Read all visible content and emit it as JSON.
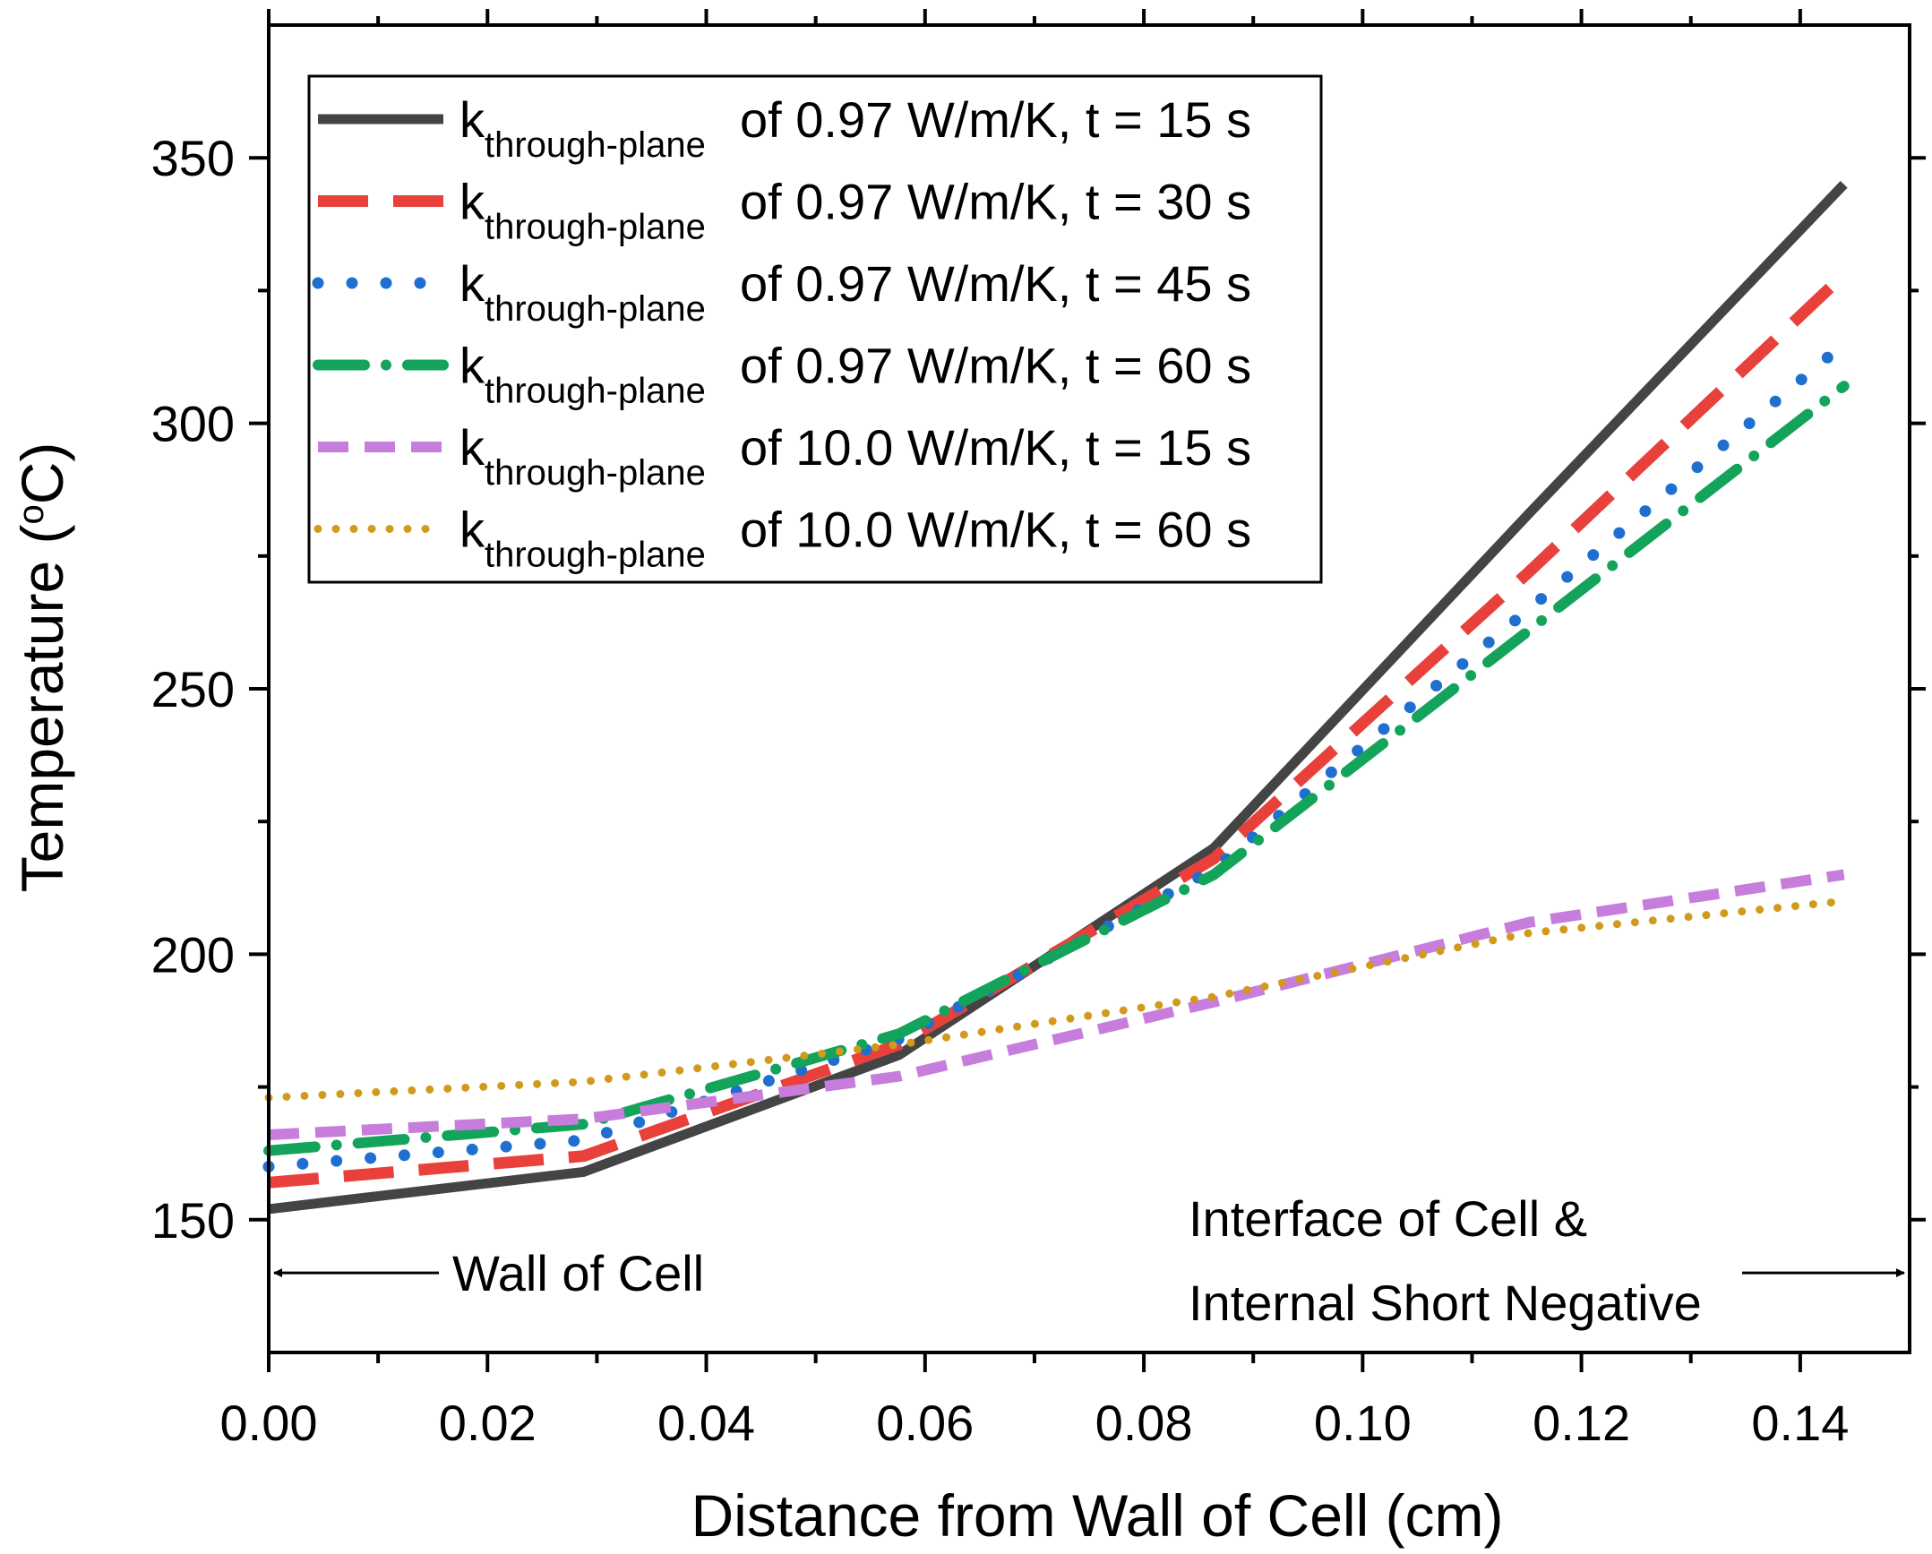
{
  "chart_data": {
    "type": "line",
    "title": "",
    "xlabel": "Distance from Wall of Cell (cm)",
    "ylabel_main": "Temperature (",
    "ylabel_sup": "o",
    "ylabel_end": "C)",
    "xlim": [
      0.0,
      0.15
    ],
    "ylim": [
      125,
      375
    ],
    "xticks": [
      0.0,
      0.02,
      0.04,
      0.06,
      0.08,
      0.1,
      0.12,
      0.14
    ],
    "xtick_labels": [
      "0.00",
      "0.02",
      "0.04",
      "0.06",
      "0.08",
      "0.10",
      "0.12",
      "0.14"
    ],
    "xminor": [
      0.01,
      0.03,
      0.05,
      0.07,
      0.09,
      0.11,
      0.13
    ],
    "yticks": [
      150,
      200,
      250,
      300,
      350
    ],
    "ytick_labels": [
      "150",
      "200",
      "250",
      "300",
      "350"
    ],
    "yminor": [
      175,
      225,
      275,
      325
    ],
    "grid": false,
    "legend_position": "top-left",
    "series": [
      {
        "name": "k through-plane of 0.97 W/m/K, t = 15 s",
        "k_symbol": "k",
        "k_sub": "through-plane",
        "label_rest": "of 0.97 W/m/K, t = 15 s",
        "color": "#444444",
        "style": "solid",
        "x": [
          0.0,
          0.0288,
          0.0576,
          0.0864,
          0.1152,
          0.144
        ],
        "y": [
          152,
          159,
          181,
          220,
          283,
          345
        ]
      },
      {
        "name": "k through-plane of 0.97 W/m/K, t = 30 s",
        "k_symbol": "k",
        "k_sub": "through-plane",
        "label_rest": "of 0.97 W/m/K, t = 30 s",
        "color": "#e8413c",
        "style": "dash",
        "x": [
          0.0,
          0.0288,
          0.0576,
          0.0864,
          0.1152,
          0.144
        ],
        "y": [
          157,
          162,
          183,
          218,
          272,
          328
        ]
      },
      {
        "name": "k through-plane of 0.97 W/m/K, t = 45 s",
        "k_symbol": "k",
        "k_sub": "through-plane",
        "label_rest": "of 0.97 W/m/K, t = 45 s",
        "color": "#1f6fd1",
        "style": "dot",
        "x": [
          0.0,
          0.0288,
          0.0576,
          0.0864,
          0.1152,
          0.144
        ],
        "y": [
          160,
          165,
          184,
          216,
          265,
          315
        ]
      },
      {
        "name": "k through-plane of 0.97 W/m/K, t = 60 s",
        "k_symbol": "k",
        "k_sub": "through-plane",
        "label_rest": "of 0.97 W/m/K, t = 60 s",
        "color": "#13a35a",
        "style": "dashdot",
        "x": [
          0.0,
          0.0288,
          0.0576,
          0.0864,
          0.1152,
          0.144
        ],
        "y": [
          163,
          168,
          185,
          215,
          261,
          307
        ]
      },
      {
        "name": "k through-plane of 10.0 W/m/K, t = 15 s",
        "k_symbol": "k",
        "k_sub": "through-plane",
        "label_rest": "of 10.0 W/m/K, t = 15 s",
        "color": "#c77ddb",
        "style": "shortdash",
        "x": [
          0.0,
          0.0288,
          0.0576,
          0.0864,
          0.1152,
          0.144
        ],
        "y": [
          166,
          169,
          177,
          191,
          206,
          215
        ]
      },
      {
        "name": "k through-plane of 10.0 W/m/K, t = 60 s",
        "k_symbol": "k",
        "k_sub": "through-plane",
        "label_rest": "of 10.0 W/m/K, t = 60 s",
        "color": "#d19a1c",
        "style": "fine-dot",
        "x": [
          0.0,
          0.0288,
          0.0576,
          0.0864,
          0.1152,
          0.144
        ],
        "y": [
          173,
          176,
          183,
          192,
          204,
          210
        ]
      }
    ],
    "annotations": {
      "left_text": "Wall of Cell",
      "right_line1": "Interface of Cell &",
      "right_line2": "Internal Short Negative",
      "arrow_y": 140
    }
  }
}
